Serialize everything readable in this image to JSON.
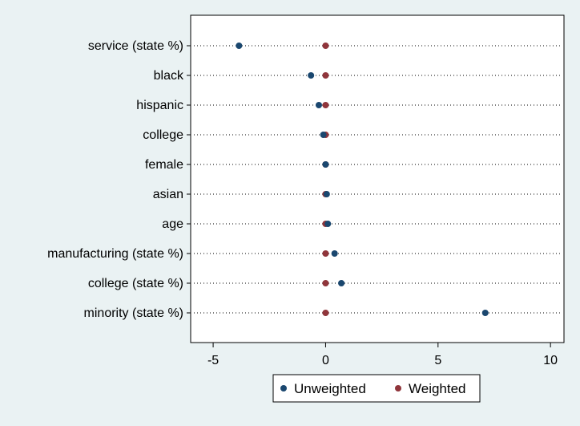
{
  "chart_data": {
    "type": "scatter",
    "title": "",
    "xlabel": "",
    "ylabel": "",
    "xlim": [
      -6.0,
      10.6
    ],
    "xticks": [
      -5,
      0,
      5,
      10
    ],
    "xtick_labels": [
      "-5",
      "0",
      "5",
      "10"
    ],
    "grid": "horizontal dotted lines",
    "legend_position": "bottom",
    "categories": [
      "service (state %)",
      "black",
      "hispanic",
      "college",
      "female",
      "asian",
      "age",
      "manufacturing (state %)",
      "college (state %)",
      "minority (state %)"
    ],
    "series": [
      {
        "name": "Unweighted",
        "color": "#1a476f",
        "values": [
          -3.85,
          -0.65,
          -0.3,
          -0.1,
          0.0,
          0.05,
          0.1,
          0.4,
          0.7,
          7.1
        ]
      },
      {
        "name": "Weighted",
        "color": "#90353b",
        "values": [
          0.0,
          0.0,
          0.0,
          0.0,
          0.0,
          0.0,
          0.0,
          0.0,
          0.0,
          0.0
        ]
      }
    ]
  }
}
